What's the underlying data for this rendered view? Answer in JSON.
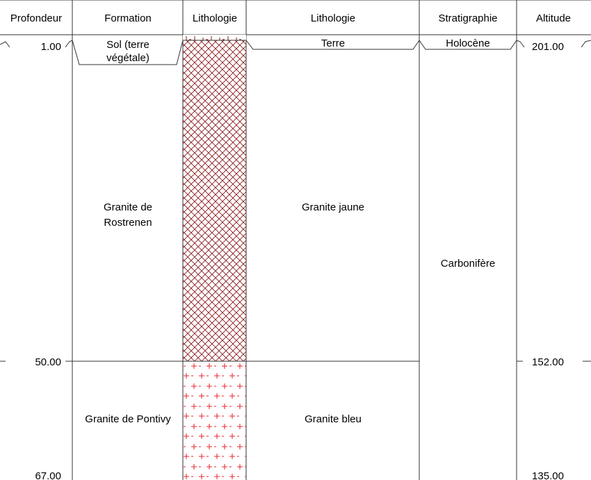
{
  "headers": {
    "profondeur": "Profondeur",
    "formation": "Formation",
    "lithologie_pattern": "Lithologie",
    "lithologie": "Lithologie",
    "stratigraphie": "Stratigraphie",
    "altitude": "Altitude"
  },
  "depth_labels": {
    "top": "1.00",
    "mid": "50.00",
    "bottom": "67.00"
  },
  "altitude_labels": {
    "top": "201.00",
    "mid": "152.00",
    "bottom": "135.00"
  },
  "formations": {
    "sol_line1": "Sol (terre",
    "sol_line2": "végétale)",
    "rostrenen_line1": "Granite de",
    "rostrenen_line2": "Rostrenen",
    "pontivy": "Granite de Pontivy"
  },
  "lithologies": {
    "terre": "Terre",
    "jaune": "Granite jaune",
    "bleu": "Granite bleu"
  },
  "stratigraphy": {
    "holocene": "Holocène",
    "carbonifere": "Carbonifère"
  },
  "colors": {
    "crosshatch": "#8b1a1a",
    "plus_pattern": "#e8202a",
    "line": "#333333"
  }
}
